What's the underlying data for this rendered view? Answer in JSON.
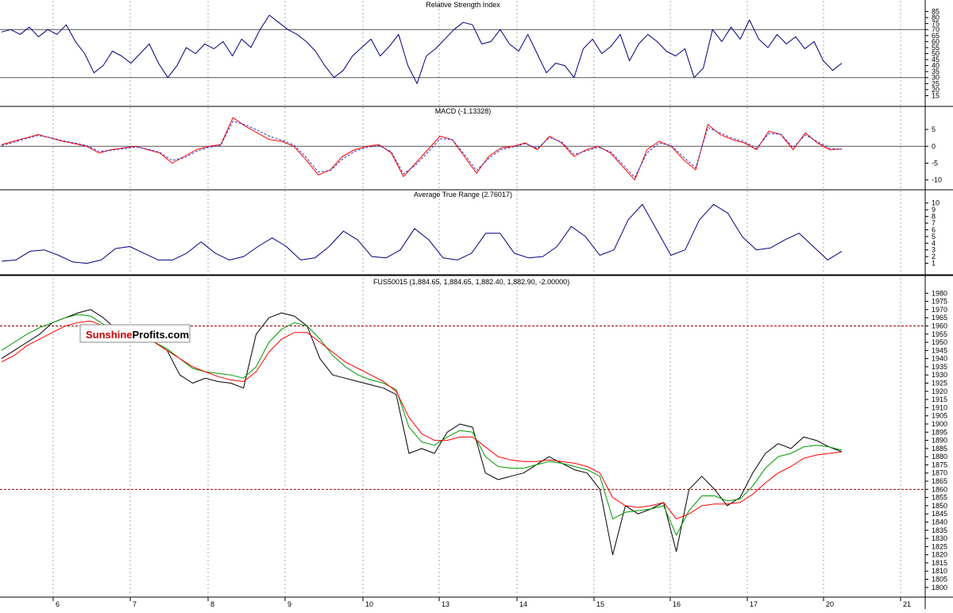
{
  "brand": {
    "part1": "Sunshine",
    "part2": "Profits.com",
    "color1": "#cc0000",
    "color2": "#000000"
  },
  "x_labels": [
    "6",
    "7",
    "8",
    "9",
    "10",
    "13",
    "14",
    "15",
    "16",
    "17",
    "20",
    "21"
  ],
  "chart_data": [
    {
      "type": "line",
      "title": "Relative Strength Index",
      "ylim": [
        10,
        88
      ],
      "y_ticks": [
        15,
        20,
        25,
        30,
        35,
        40,
        45,
        50,
        55,
        60,
        65,
        70,
        75,
        80,
        85
      ],
      "ref_lines": [
        70,
        30
      ],
      "series": [
        {
          "color": "#000080",
          "values": [
            68,
            70,
            66,
            72,
            64,
            70,
            66,
            74,
            60,
            50,
            34,
            40,
            52,
            48,
            42,
            50,
            58,
            42,
            30,
            40,
            55,
            50,
            58,
            54,
            60,
            48,
            62,
            55,
            70,
            82,
            76,
            70,
            66,
            60,
            52,
            40,
            30,
            36,
            48,
            55,
            62,
            48,
            56,
            66,
            40,
            25,
            48,
            54,
            62,
            70,
            76,
            74,
            58,
            60,
            70,
            58,
            52,
            66,
            50,
            34,
            42,
            40,
            30,
            54,
            62,
            50,
            56,
            66,
            44,
            58,
            66,
            60,
            52,
            48,
            54,
            30,
            38,
            70,
            60,
            72,
            62,
            78,
            62,
            55,
            66,
            58,
            64,
            54,
            60,
            44,
            36,
            42
          ]
        }
      ]
    },
    {
      "type": "line",
      "title": "MACD (-1.13328)",
      "ylim": [
        -11.5,
        9.5
      ],
      "y_ticks": [
        5,
        0,
        -5,
        -10
      ],
      "ref_lines": [
        0
      ],
      "series": [
        {
          "color": "#ff0000",
          "values": [
            0.5,
            1.5,
            2.5,
            3.5,
            2.5,
            1.5,
            0.8,
            0,
            -2,
            -1,
            -0.5,
            0,
            -1,
            -2,
            -5,
            -3,
            -1,
            0,
            0.5,
            8.5,
            6,
            4,
            2,
            1.5,
            0,
            -4,
            -8.5,
            -7,
            -3,
            -1,
            0,
            0.5,
            -2,
            -9,
            -5,
            -1,
            3,
            2,
            -3,
            -8,
            -3,
            -0.5,
            0,
            1,
            -1,
            3,
            1,
            -3,
            -1,
            0,
            -2,
            -6,
            -10,
            -1,
            1.5,
            0,
            -4,
            -7,
            6.5,
            3.5,
            2,
            1,
            -1,
            4.5,
            3.5,
            -1,
            4,
            1,
            -1,
            -0.8
          ]
        },
        {
          "color": "#3333cc",
          "dashed": true,
          "values": [
            0.2,
            1.2,
            2.3,
            3.2,
            2.6,
            1.7,
            1,
            0.2,
            -1.5,
            -1.2,
            -0.7,
            -0.2,
            -0.8,
            -1.8,
            -4.2,
            -3.4,
            -1.5,
            -0.3,
            0.3,
            7.5,
            6.4,
            4.8,
            3,
            1.8,
            0.4,
            -3.2,
            -7.6,
            -7.2,
            -3.8,
            -1.5,
            -0.3,
            0.2,
            -1.6,
            -8.2,
            -5.6,
            -1.8,
            2.2,
            2.1,
            -2.4,
            -7.2,
            -3.6,
            -1,
            -0.2,
            0.8,
            -0.6,
            2.6,
            1.3,
            -2.4,
            -1.4,
            -0.3,
            -1.6,
            -5.4,
            -9.2,
            -2,
            1,
            0.2,
            -3.2,
            -6.4,
            5.6,
            4,
            2.4,
            1.4,
            -0.6,
            3.8,
            3.6,
            -0.4,
            3.4,
            1.4,
            -0.6,
            -0.9
          ]
        }
      ]
    },
    {
      "type": "line",
      "title": "Average True Range (2.76017)",
      "ylim": [
        0,
        10.8
      ],
      "y_ticks": [
        1,
        2,
        3,
        4,
        5,
        6,
        7,
        8,
        9,
        10
      ],
      "series": [
        {
          "color": "#000080",
          "values": [
            1.3,
            1.5,
            2.8,
            3,
            2.2,
            1.2,
            1,
            1.5,
            3.2,
            3.5,
            2.5,
            1.5,
            1.5,
            2.5,
            4.2,
            2.5,
            1.5,
            2,
            3.5,
            4.8,
            3.5,
            1.5,
            1.8,
            3.5,
            5.8,
            4.5,
            2,
            1.8,
            3,
            6.2,
            4.5,
            1.8,
            1.5,
            2.5,
            5.5,
            5.5,
            2.5,
            1.8,
            2,
            3.5,
            6.5,
            5,
            2.2,
            3,
            7.5,
            9.8,
            6,
            2.2,
            3,
            7.5,
            9.8,
            8.5,
            5,
            3,
            3.3,
            4.5,
            5.5,
            3.5,
            1.5,
            2.8
          ]
        }
      ]
    },
    {
      "type": "line",
      "title": "FUS50015 (1,884.65, 1,884.65, 1,882.40, 1,882.90, -2.00000)",
      "ylim": [
        1797,
        1985
      ],
      "y_ticks": [
        1800,
        1805,
        1810,
        1815,
        1820,
        1825,
        1830,
        1835,
        1840,
        1845,
        1850,
        1855,
        1860,
        1865,
        1870,
        1875,
        1880,
        1885,
        1890,
        1895,
        1900,
        1905,
        1910,
        1915,
        1920,
        1925,
        1930,
        1935,
        1940,
        1945,
        1950,
        1955,
        1960,
        1965,
        1970,
        1975,
        1980
      ],
      "ref_lines": [
        1960,
        1860
      ],
      "series": [
        {
          "color": "#000000",
          "values": [
            1940,
            1945,
            1950,
            1955,
            1962,
            1965,
            1968,
            1970,
            1965,
            1958,
            1955,
            1952,
            1950,
            1945,
            1930,
            1925,
            1928,
            1926,
            1925,
            1922,
            1955,
            1965,
            1968,
            1966,
            1960,
            1940,
            1930,
            1928,
            1926,
            1924,
            1922,
            1918,
            1882,
            1885,
            1882,
            1895,
            1900,
            1898,
            1870,
            1866,
            1868,
            1870,
            1875,
            1880,
            1876,
            1872,
            1870,
            1860,
            1820,
            1850,
            1845,
            1848,
            1852,
            1822,
            1860,
            1868,
            1860,
            1850,
            1855,
            1870,
            1882,
            1888,
            1885,
            1892,
            1890,
            1886,
            1883
          ]
        },
        {
          "color": "#009900",
          "values": [
            1945,
            1950,
            1955,
            1959,
            1962,
            1965,
            1967,
            1966,
            1961,
            1958,
            1955,
            1952,
            1950,
            1946,
            1940,
            1934,
            1932,
            1931,
            1930,
            1928,
            1935,
            1950,
            1958,
            1962,
            1960,
            1952,
            1942,
            1935,
            1930,
            1927,
            1925,
            1921,
            1898,
            1889,
            1887,
            1892,
            1896,
            1895,
            1880,
            1874,
            1873,
            1873,
            1875,
            1877,
            1876,
            1874,
            1872,
            1868,
            1842,
            1846,
            1847,
            1848,
            1850,
            1832,
            1847,
            1856,
            1856,
            1853,
            1854,
            1862,
            1873,
            1880,
            1882,
            1886,
            1887,
            1886,
            1884
          ]
        },
        {
          "color": "#ff0000",
          "values": [
            1938,
            1942,
            1948,
            1952,
            1956,
            1960,
            1962,
            1963,
            1960,
            1958,
            1956,
            1953,
            1950,
            1945,
            1940,
            1935,
            1932,
            1929,
            1927,
            1926,
            1932,
            1944,
            1952,
            1956,
            1956,
            1950,
            1944,
            1938,
            1934,
            1930,
            1926,
            1920,
            1904,
            1894,
            1890,
            1890,
            1892,
            1892,
            1886,
            1880,
            1878,
            1877,
            1877,
            1878,
            1877,
            1876,
            1874,
            1870,
            1855,
            1850,
            1849,
            1850,
            1852,
            1842,
            1845,
            1850,
            1851,
            1851,
            1852,
            1857,
            1864,
            1870,
            1874,
            1879,
            1881,
            1882,
            1883
          ]
        }
      ]
    }
  ]
}
